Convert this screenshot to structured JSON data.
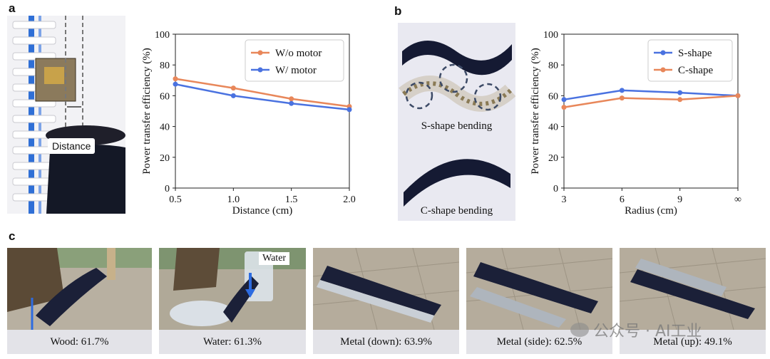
{
  "panels": {
    "a": "a",
    "b": "b",
    "c": "c"
  },
  "panel_a": {
    "distance_label": "Distance"
  },
  "panel_b": {
    "s_label": "S-shape bending",
    "c_label": "C-shape bending"
  },
  "panel_c": {
    "water_label": "Water",
    "captions": [
      "Wood: 61.7%",
      "Water: 61.3%",
      "Metal (down): 63.9%",
      "Metal (side): 62.5%",
      "Metal (up): 49.1%"
    ]
  },
  "watermark": "公众号 · AI工业",
  "colors": {
    "orange": "#e8875a",
    "blue": "#4a72e0",
    "robot": "#1d2340",
    "ground": "#a9a092"
  },
  "chart_data": [
    {
      "type": "line",
      "xlabel": "Distance (cm)",
      "ylabel": "Power transfer efficiency (%)",
      "xlim": [
        0.5,
        2.0
      ],
      "ylim": [
        0,
        100
      ],
      "xticks": [
        "0.5",
        "1.0",
        "1.5",
        "2.0"
      ],
      "yticks": [
        "0",
        "20",
        "40",
        "60",
        "80",
        "100"
      ],
      "x": [
        0.5,
        1.0,
        1.5,
        2.0
      ],
      "legend_position": "top-right",
      "series": [
        {
          "name": "W/o motor",
          "color": "#e8875a",
          "values": [
            71,
            65,
            58,
            53
          ]
        },
        {
          "name": "W/ motor",
          "color": "#4a72e0",
          "values": [
            67.5,
            60,
            55,
            51
          ]
        }
      ]
    },
    {
      "type": "line",
      "xlabel": "Radius (cm)",
      "ylabel": "Power transfer efficiency (%)",
      "xlim": [
        3,
        12
      ],
      "ylim": [
        0,
        100
      ],
      "xticks": [
        "3",
        "6",
        "9",
        "∞"
      ],
      "yticks": [
        "0",
        "20",
        "40",
        "60",
        "80",
        "100"
      ],
      "x": [
        3,
        6,
        9,
        12
      ],
      "legend_position": "top-right",
      "series": [
        {
          "name": "S-shape",
          "color": "#4a72e0",
          "values": [
            57.5,
            63.5,
            62,
            60
          ]
        },
        {
          "name": "C-shape",
          "color": "#e8875a",
          "values": [
            52.5,
            58.5,
            57.5,
            60
          ]
        }
      ]
    }
  ]
}
